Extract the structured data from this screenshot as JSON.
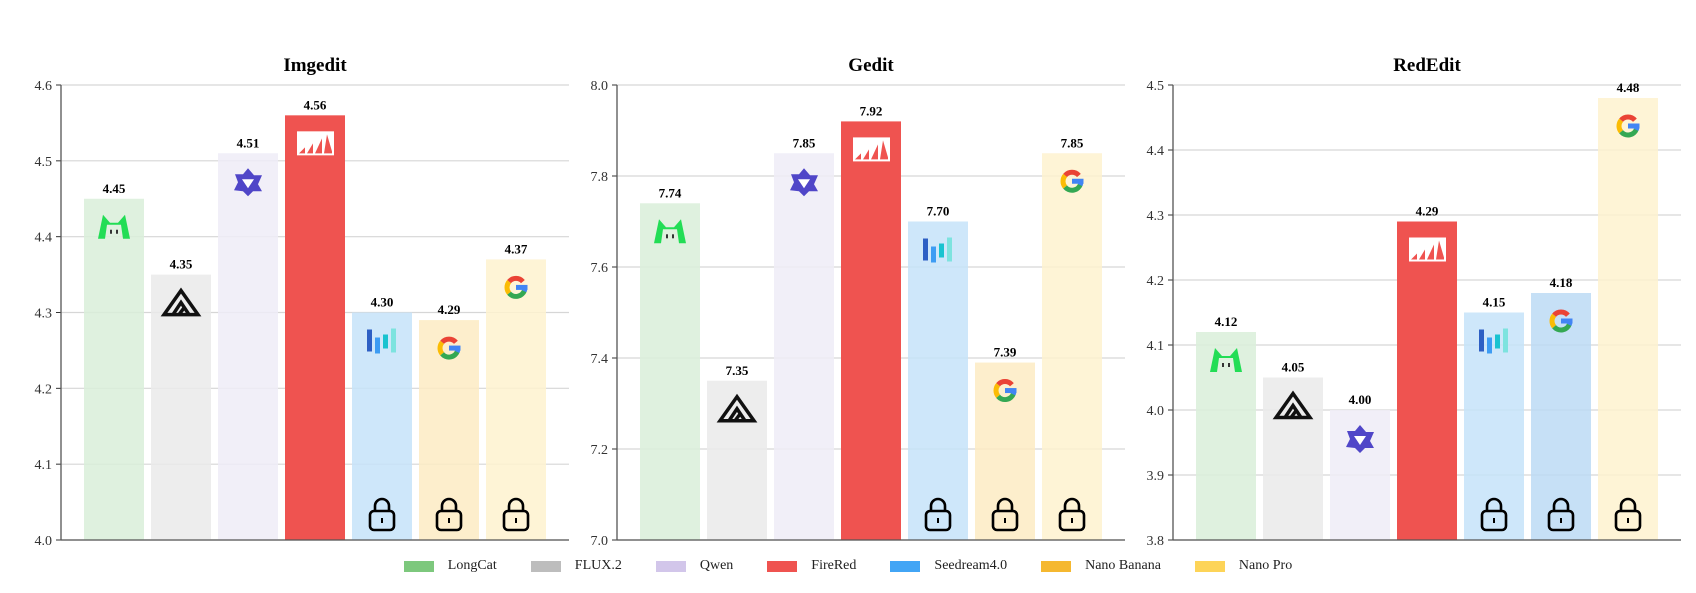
{
  "legend": [
    {
      "name": "LongCat",
      "color": "#7dc87d"
    },
    {
      "name": "FLUX.2",
      "color": "#bdbdbd"
    },
    {
      "name": "Qwen",
      "color": "#d2c6ea"
    },
    {
      "name": "FireRed",
      "color": "#ef5350"
    },
    {
      "name": "Seedream4.0",
      "color": "#42a5f5"
    },
    {
      "name": "Nano Banana",
      "color": "#f5b830"
    },
    {
      "name": "Nano Pro",
      "color": "#fdd458"
    }
  ],
  "chart_data": [
    {
      "type": "bar",
      "title": "Imgedit",
      "categories": [
        "LongCat",
        "FLUX.2",
        "Qwen",
        "FireRed",
        "Seedream4.0",
        "Nano Banana",
        "Nano Pro"
      ],
      "values": [
        4.45,
        4.35,
        4.51,
        4.56,
        4.3,
        4.29,
        4.37
      ],
      "labels": [
        "4.45",
        "4.35",
        "4.51",
        "4.56",
        "4.30",
        "4.29",
        "4.37"
      ],
      "ylim": [
        4.0,
        4.6
      ],
      "yticks": [
        "4.0",
        "4.1",
        "4.2",
        "4.3",
        "4.4",
        "4.5",
        "4.6"
      ],
      "icons": [
        "longcat-logo",
        "flux-logo",
        "qwen-logo",
        "firered-logo",
        "seedream-logo",
        "google-logo",
        "google-logo"
      ],
      "locked": [
        false,
        false,
        false,
        false,
        true,
        true,
        true
      ],
      "bar_colors": [
        "#d9eed9",
        "#eaeaea",
        "#efecf7",
        "#ef5350",
        "#c6e3f9",
        "#fdebc3",
        "#fef2cf"
      ],
      "grid": true
    },
    {
      "type": "bar",
      "title": "Gedit",
      "categories": [
        "LongCat",
        "FLUX.2",
        "Qwen",
        "FireRed",
        "Seedream4.0",
        "Nano Banana",
        "Nano Pro"
      ],
      "values": [
        7.74,
        7.35,
        7.85,
        7.92,
        7.7,
        7.39,
        7.85
      ],
      "labels": [
        "7.74",
        "7.35",
        "7.85",
        "7.92",
        "7.70",
        "7.39",
        "7.85"
      ],
      "ylim": [
        7.0,
        8.0
      ],
      "yticks": [
        "7.0",
        "7.2",
        "7.4",
        "7.6",
        "7.8",
        "8.0"
      ],
      "icons": [
        "longcat-logo",
        "flux-logo",
        "qwen-logo",
        "firered-logo",
        "seedream-logo",
        "google-logo",
        "google-logo"
      ],
      "locked": [
        false,
        false,
        false,
        false,
        true,
        true,
        true
      ],
      "bar_colors": [
        "#d9eed9",
        "#eaeaea",
        "#efecf7",
        "#ef5350",
        "#c6e3f9",
        "#fdebc3",
        "#fef2cf"
      ],
      "grid": true
    },
    {
      "type": "bar",
      "title": "RedEdit",
      "categories": [
        "LongCat",
        "FLUX.2",
        "Qwen",
        "FireRed",
        "Seedream4.0",
        "Nano Banana",
        "Nano Pro"
      ],
      "values": [
        4.12,
        4.05,
        4.0,
        4.29,
        4.15,
        4.18,
        4.48
      ],
      "labels": [
        "4.12",
        "4.05",
        "4.00",
        "4.29",
        "4.15",
        "4.18",
        "4.48"
      ],
      "ylim": [
        3.8,
        4.5
      ],
      "yticks": [
        "3.8",
        "3.9",
        "4.0",
        "4.1",
        "4.2",
        "4.3",
        "4.4",
        "4.5"
      ],
      "icons": [
        "longcat-logo",
        "flux-logo",
        "qwen-logo",
        "firered-logo",
        "seedream-logo",
        "google-logo",
        "google-logo"
      ],
      "locked": [
        false,
        false,
        false,
        false,
        true,
        true,
        true
      ],
      "bar_colors": [
        "#d9eed9",
        "#eaeaea",
        "#efecf7",
        "#ef5350",
        "#c6e3f9",
        "#bcdaf5",
        "#fef2cf"
      ],
      "grid": true
    }
  ]
}
